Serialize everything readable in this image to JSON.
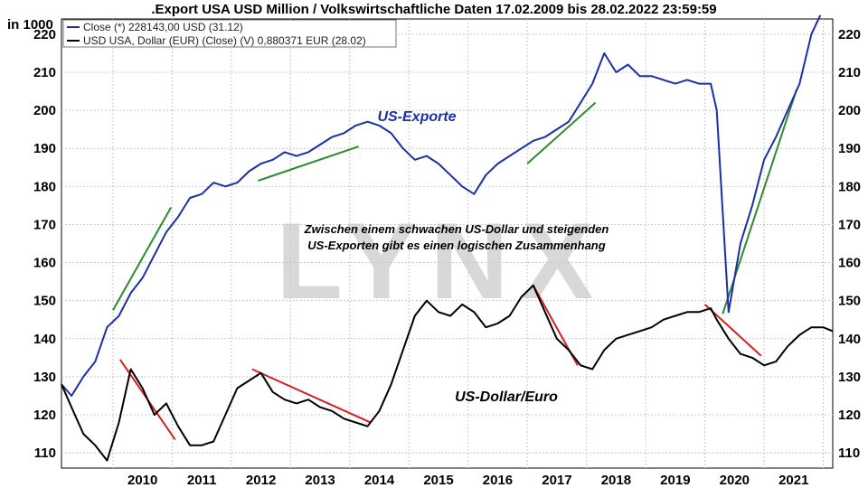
{
  "title": ".Export USA USD Million / Volkswirtschaftliche Daten 17.02.2009 bis 28.02.2022 23:59:59",
  "unit_label": "in 1000",
  "watermark": "LYNX",
  "annotation": [
    "Zwischen einem schwachen US-Dollar und steigenden",
    "US-Exporten gibt es einen logischen Zusammenhang"
  ],
  "colors": {
    "exports": "#1a2fa8",
    "dollar": "#000000",
    "trend_up": "#2e8b2e",
    "trend_down": "#d42020",
    "grid": "#c8c8c8"
  },
  "chart_data": {
    "type": "line",
    "title": ".Export USA USD Million / Volkswirtschaftliche Daten 17.02.2009 bis 28.02.2022 23:59:59",
    "xlim": [
      2009.13,
      2022.16
    ],
    "ylim": [
      106,
      224
    ],
    "x_ticks": [
      "2010",
      "2011",
      "2012",
      "2013",
      "2014",
      "2015",
      "2016",
      "2017",
      "2018",
      "2019",
      "2020",
      "2021"
    ],
    "y_ticks": [
      110,
      120,
      130,
      140,
      150,
      160,
      170,
      180,
      190,
      200,
      210,
      220
    ],
    "legend": [
      "Close (*) 228143,00 USD (31.12)",
      "USD USA, Dollar (EUR) (Close) (V) 0,880371 EUR (28.02)"
    ],
    "series": [
      {
        "name": "US-Exporte",
        "points": [
          [
            2009.13,
            128
          ],
          [
            2009.3,
            125
          ],
          [
            2009.5,
            130
          ],
          [
            2009.7,
            134
          ],
          [
            2009.9,
            143
          ],
          [
            2010.1,
            146
          ],
          [
            2010.3,
            152
          ],
          [
            2010.5,
            156
          ],
          [
            2010.7,
            162
          ],
          [
            2010.9,
            168
          ],
          [
            2011.1,
            172
          ],
          [
            2011.3,
            177
          ],
          [
            2011.5,
            178
          ],
          [
            2011.7,
            181
          ],
          [
            2011.9,
            180
          ],
          [
            2012.1,
            181
          ],
          [
            2012.3,
            184
          ],
          [
            2012.5,
            186
          ],
          [
            2012.7,
            187
          ],
          [
            2012.9,
            189
          ],
          [
            2013.1,
            188
          ],
          [
            2013.3,
            189
          ],
          [
            2013.5,
            191
          ],
          [
            2013.7,
            193
          ],
          [
            2013.9,
            194
          ],
          [
            2014.1,
            196
          ],
          [
            2014.3,
            197
          ],
          [
            2014.5,
            196
          ],
          [
            2014.7,
            194
          ],
          [
            2014.9,
            190
          ],
          [
            2015.1,
            187
          ],
          [
            2015.3,
            188
          ],
          [
            2015.5,
            186
          ],
          [
            2015.7,
            183
          ],
          [
            2015.9,
            180
          ],
          [
            2016.1,
            178
          ],
          [
            2016.3,
            183
          ],
          [
            2016.5,
            186
          ],
          [
            2016.7,
            188
          ],
          [
            2016.9,
            190
          ],
          [
            2017.1,
            192
          ],
          [
            2017.3,
            193
          ],
          [
            2017.5,
            195
          ],
          [
            2017.7,
            197
          ],
          [
            2017.9,
            202
          ],
          [
            2018.1,
            207
          ],
          [
            2018.3,
            215
          ],
          [
            2018.5,
            210
          ],
          [
            2018.7,
            212
          ],
          [
            2018.9,
            209
          ],
          [
            2019.1,
            209
          ],
          [
            2019.3,
            208
          ],
          [
            2019.5,
            207
          ],
          [
            2019.7,
            208
          ],
          [
            2019.9,
            207
          ],
          [
            2020.1,
            207
          ],
          [
            2020.2,
            200
          ],
          [
            2020.4,
            147
          ],
          [
            2020.6,
            165
          ],
          [
            2020.8,
            175
          ],
          [
            2021.0,
            187
          ],
          [
            2021.2,
            193
          ],
          [
            2021.4,
            200
          ],
          [
            2021.6,
            207
          ],
          [
            2021.8,
            220
          ],
          [
            2021.95,
            225
          ]
        ]
      },
      {
        "name": "US-Dollar/Euro",
        "points": [
          [
            2009.13,
            128
          ],
          [
            2009.3,
            122
          ],
          [
            2009.5,
            115
          ],
          [
            2009.7,
            112
          ],
          [
            2009.9,
            108
          ],
          [
            2010.1,
            118
          ],
          [
            2010.3,
            132
          ],
          [
            2010.5,
            127
          ],
          [
            2010.7,
            120
          ],
          [
            2010.9,
            123
          ],
          [
            2011.1,
            117
          ],
          [
            2011.3,
            112
          ],
          [
            2011.5,
            112
          ],
          [
            2011.7,
            113
          ],
          [
            2011.9,
            120
          ],
          [
            2012.1,
            127
          ],
          [
            2012.3,
            129
          ],
          [
            2012.5,
            131
          ],
          [
            2012.7,
            126
          ],
          [
            2012.9,
            124
          ],
          [
            2013.1,
            123
          ],
          [
            2013.3,
            124
          ],
          [
            2013.5,
            122
          ],
          [
            2013.7,
            121
          ],
          [
            2013.9,
            119
          ],
          [
            2014.1,
            118
          ],
          [
            2014.3,
            117
          ],
          [
            2014.5,
            121
          ],
          [
            2014.7,
            128
          ],
          [
            2014.9,
            137
          ],
          [
            2015.1,
            146
          ],
          [
            2015.3,
            150
          ],
          [
            2015.5,
            147
          ],
          [
            2015.7,
            146
          ],
          [
            2015.9,
            149
          ],
          [
            2016.1,
            147
          ],
          [
            2016.3,
            143
          ],
          [
            2016.5,
            144
          ],
          [
            2016.7,
            146
          ],
          [
            2016.9,
            151
          ],
          [
            2017.1,
            154
          ],
          [
            2017.3,
            147
          ],
          [
            2017.5,
            140
          ],
          [
            2017.7,
            137
          ],
          [
            2017.9,
            133
          ],
          [
            2018.1,
            132
          ],
          [
            2018.3,
            137
          ],
          [
            2018.5,
            140
          ],
          [
            2018.7,
            141
          ],
          [
            2018.9,
            142
          ],
          [
            2019.1,
            143
          ],
          [
            2019.3,
            145
          ],
          [
            2019.5,
            146
          ],
          [
            2019.7,
            147
          ],
          [
            2019.9,
            147
          ],
          [
            2020.1,
            148
          ],
          [
            2020.2,
            145
          ],
          [
            2020.4,
            140
          ],
          [
            2020.6,
            136
          ],
          [
            2020.8,
            135
          ],
          [
            2021.0,
            133
          ],
          [
            2021.2,
            134
          ],
          [
            2021.4,
            138
          ],
          [
            2021.6,
            141
          ],
          [
            2021.8,
            143
          ],
          [
            2022.0,
            143
          ],
          [
            2022.16,
            142
          ]
        ]
      }
    ],
    "trend_lines": [
      {
        "color": "up",
        "from": [
          2010.0,
          147.5
        ],
        "to": [
          2010.98,
          174.5
        ]
      },
      {
        "color": "up",
        "from": [
          2012.45,
          181.5
        ],
        "to": [
          2014.15,
          190.5
        ]
      },
      {
        "color": "up",
        "from": [
          2017.0,
          186.0
        ],
        "to": [
          2018.15,
          202.0
        ]
      },
      {
        "color": "up",
        "from": [
          2020.3,
          146.5
        ],
        "to": [
          2021.55,
          205.5
        ]
      },
      {
        "color": "down",
        "from": [
          2010.12,
          134.5
        ],
        "to": [
          2011.05,
          113.5
        ]
      },
      {
        "color": "down",
        "from": [
          2012.35,
          132.0
        ],
        "to": [
          2014.35,
          118.0
        ]
      },
      {
        "color": "down",
        "from": [
          2017.1,
          154.0
        ],
        "to": [
          2017.85,
          133.0
        ]
      },
      {
        "color": "down",
        "from": [
          2020.0,
          149.0
        ],
        "to": [
          2020.95,
          135.5
        ]
      }
    ],
    "series_labels": {
      "exports": "US-Exporte",
      "dollar": "US-Dollar/Euro"
    }
  }
}
